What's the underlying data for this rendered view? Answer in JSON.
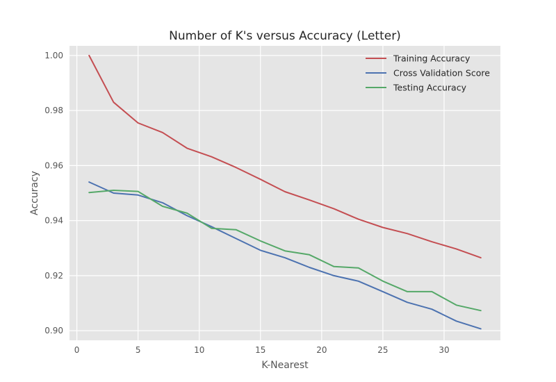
{
  "chart_data": {
    "type": "line",
    "title": "Number of K's versus Accuracy (Letter)",
    "xlabel": "K-Nearest",
    "ylabel": "Accuracy",
    "xlim": [
      -0.6,
      34.6
    ],
    "ylim": [
      0.8965,
      1.0035
    ],
    "xticks": [
      0,
      5,
      10,
      15,
      20,
      25,
      30
    ],
    "yticks": [
      0.9,
      0.92,
      0.94,
      0.96,
      0.98,
      1.0
    ],
    "ytick_labels": [
      "0.90",
      "0.92",
      "0.94",
      "0.96",
      "0.98",
      "1.00"
    ],
    "grid": true,
    "legend_position": "top-right",
    "x": [
      1,
      3,
      5,
      7,
      9,
      11,
      13,
      15,
      17,
      19,
      21,
      23,
      25,
      27,
      29,
      31,
      33
    ],
    "series": [
      {
        "name": "Training Accuracy",
        "color": "#C44E52",
        "values": [
          1.0,
          0.983,
          0.9755,
          0.972,
          0.9663,
          0.9632,
          0.9593,
          0.955,
          0.9505,
          0.9475,
          0.9443,
          0.9405,
          0.9375,
          0.9353,
          0.9323,
          0.9297,
          0.9265
        ]
      },
      {
        "name": "Cross Validation Score",
        "color": "#4C72B0",
        "values": [
          0.954,
          0.95,
          0.9493,
          0.9465,
          0.9418,
          0.9378,
          0.9335,
          0.9292,
          0.9265,
          0.923,
          0.92,
          0.918,
          0.9142,
          0.9103,
          0.9078,
          0.9035,
          0.9007
        ]
      },
      {
        "name": "Testing Accuracy",
        "color": "#55A868",
        "values": [
          0.9502,
          0.951,
          0.9506,
          0.9452,
          0.9427,
          0.9372,
          0.9367,
          0.9326,
          0.929,
          0.9276,
          0.9233,
          0.9228,
          0.918,
          0.9142,
          0.9142,
          0.9093,
          0.9073
        ]
      }
    ]
  }
}
